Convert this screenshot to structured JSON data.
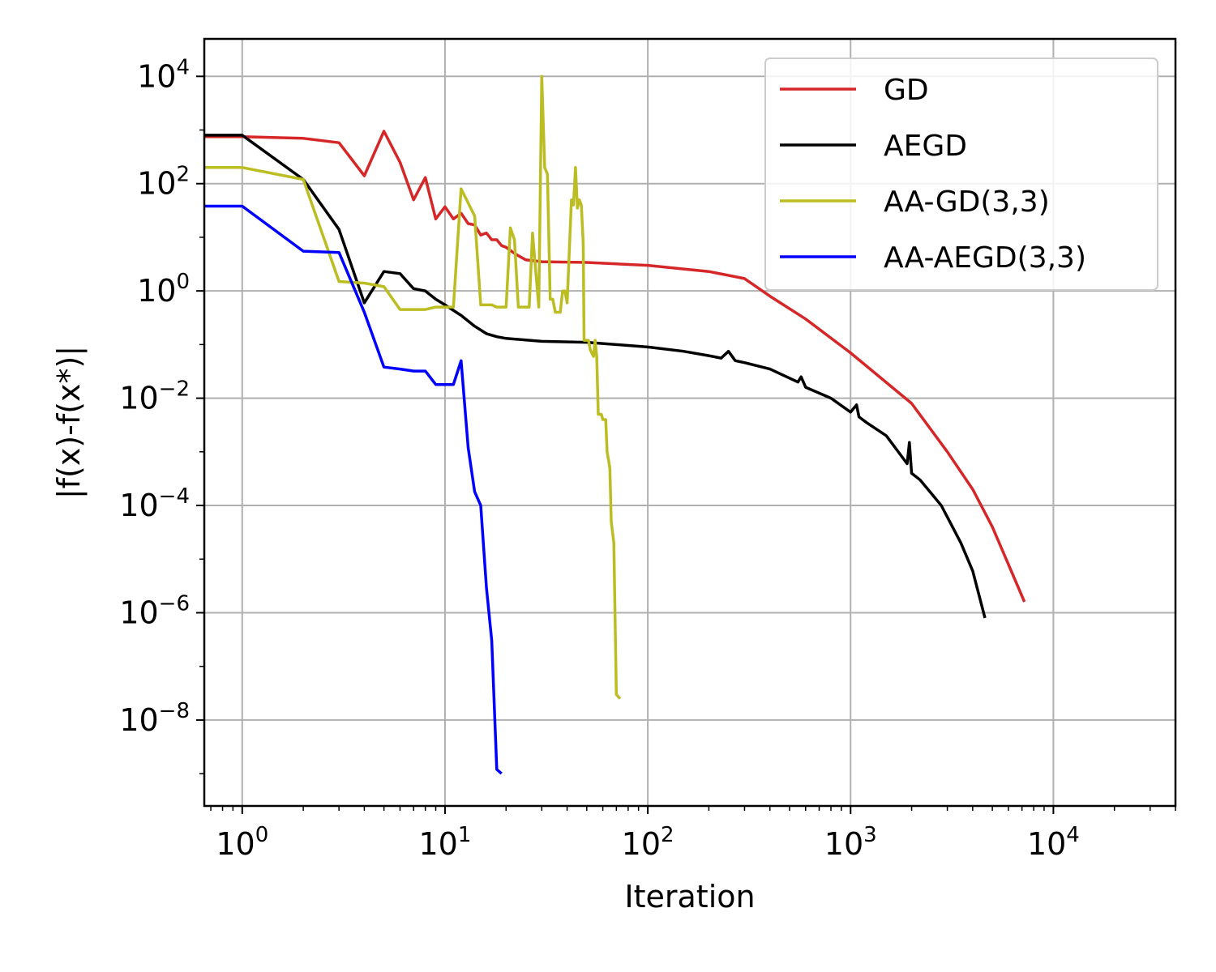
{
  "chart_data": {
    "type": "line",
    "title": "",
    "xlabel": "Iteration",
    "ylabel": "|f(x)-f(x*)|",
    "xscale": "log",
    "yscale": "log",
    "xlim": [
      0.65,
      40000
    ],
    "ylim": [
      2.5e-10,
      50000
    ],
    "xticks": [
      {
        "value": 1,
        "base": "10",
        "exp": "0"
      },
      {
        "value": 10,
        "base": "10",
        "exp": "1"
      },
      {
        "value": 100,
        "base": "10",
        "exp": "2"
      },
      {
        "value": 1000,
        "base": "10",
        "exp": "3"
      },
      {
        "value": 10000,
        "base": "10",
        "exp": "4"
      }
    ],
    "yticks": [
      {
        "value": 1e-08,
        "base": "10",
        "exp": "−8"
      },
      {
        "value": 1e-06,
        "base": "10",
        "exp": "−6"
      },
      {
        "value": 0.0001,
        "base": "10",
        "exp": "−4"
      },
      {
        "value": 0.01,
        "base": "10",
        "exp": "−2"
      },
      {
        "value": 1,
        "base": "10",
        "exp": "0"
      },
      {
        "value": 100,
        "base": "10",
        "exp": "2"
      },
      {
        "value": 10000,
        "base": "10",
        "exp": "4"
      }
    ],
    "grid": true,
    "legend_position": "top-right",
    "series": [
      {
        "name": "GD",
        "color": "#d62728",
        "points": [
          [
            0.65,
            750
          ],
          [
            1,
            750
          ],
          [
            2,
            700
          ],
          [
            3,
            580
          ],
          [
            4,
            140
          ],
          [
            5,
            950
          ],
          [
            6,
            250
          ],
          [
            7,
            50
          ],
          [
            8,
            130
          ],
          [
            9,
            22
          ],
          [
            10,
            37
          ],
          [
            11,
            22
          ],
          [
            12,
            28
          ],
          [
            13,
            18
          ],
          [
            14,
            17
          ],
          [
            15,
            11
          ],
          [
            16,
            12
          ],
          [
            17,
            9
          ],
          [
            18,
            9
          ],
          [
            19,
            7
          ],
          [
            20,
            6.5
          ],
          [
            22,
            5
          ],
          [
            25,
            3.8
          ],
          [
            30,
            3.5
          ],
          [
            50,
            3.4
          ],
          [
            100,
            3
          ],
          [
            200,
            2.3
          ],
          [
            300,
            1.7
          ],
          [
            400,
            0.8
          ],
          [
            600,
            0.3
          ],
          [
            1000,
            0.07
          ],
          [
            2000,
            0.008
          ],
          [
            3000,
            0.001
          ],
          [
            4000,
            0.0002
          ],
          [
            5000,
            4e-05
          ],
          [
            6000,
            8e-06
          ],
          [
            7200,
            1.6e-06
          ]
        ]
      },
      {
        "name": "AEGD",
        "color": "#000000",
        "points": [
          [
            0.65,
            800
          ],
          [
            1,
            800
          ],
          [
            2,
            120
          ],
          [
            3,
            14
          ],
          [
            4,
            0.6
          ],
          [
            5,
            2.3
          ],
          [
            6,
            2.1
          ],
          [
            7,
            1.1
          ],
          [
            8,
            1
          ],
          [
            9,
            0.7
          ],
          [
            10,
            0.55
          ],
          [
            12,
            0.35
          ],
          [
            14,
            0.22
          ],
          [
            16,
            0.16
          ],
          [
            18,
            0.14
          ],
          [
            20,
            0.13
          ],
          [
            30,
            0.115
          ],
          [
            50,
            0.11
          ],
          [
            100,
            0.09
          ],
          [
            150,
            0.075
          ],
          [
            200,
            0.062
          ],
          [
            230,
            0.056
          ],
          [
            250,
            0.075
          ],
          [
            270,
            0.05
          ],
          [
            300,
            0.046
          ],
          [
            400,
            0.035
          ],
          [
            550,
            0.02
          ],
          [
            570,
            0.025
          ],
          [
            600,
            0.016
          ],
          [
            800,
            0.01
          ],
          [
            1000,
            0.0055
          ],
          [
            1070,
            0.0075
          ],
          [
            1100,
            0.0045
          ],
          [
            1200,
            0.0035
          ],
          [
            1500,
            0.002
          ],
          [
            1900,
            0.0006
          ],
          [
            1950,
            0.0015
          ],
          [
            2000,
            0.0004
          ],
          [
            2200,
            0.0003
          ],
          [
            2800,
            0.0001
          ],
          [
            3500,
            2e-05
          ],
          [
            4000,
            6e-06
          ],
          [
            4600,
            8e-07
          ]
        ]
      },
      {
        "name": "AA-GD(3,3)",
        "color": "#bcbd22",
        "points": [
          [
            0.65,
            200
          ],
          [
            1,
            200
          ],
          [
            2,
            120
          ],
          [
            3,
            1.5
          ],
          [
            4,
            1.4
          ],
          [
            5,
            1.2
          ],
          [
            6,
            0.45
          ],
          [
            7,
            0.45
          ],
          [
            8,
            0.45
          ],
          [
            9,
            0.5
          ],
          [
            11,
            0.5
          ],
          [
            12,
            80
          ],
          [
            14,
            25
          ],
          [
            15,
            0.55
          ],
          [
            17,
            0.55
          ],
          [
            18,
            0.5
          ],
          [
            20,
            0.5
          ],
          [
            21,
            15
          ],
          [
            22,
            9
          ],
          [
            23,
            0.5
          ],
          [
            26,
            0.5
          ],
          [
            27,
            12
          ],
          [
            29,
            0.5
          ],
          [
            30,
            10000
          ],
          [
            31,
            200
          ],
          [
            32,
            150
          ],
          [
            33,
            0.7
          ],
          [
            34,
            0.7
          ],
          [
            35,
            0.4
          ],
          [
            37,
            0.4
          ],
          [
            38,
            1
          ],
          [
            39,
            1
          ],
          [
            40,
            0.6
          ],
          [
            42,
            50
          ],
          [
            43,
            40
          ],
          [
            44,
            200
          ],
          [
            45,
            35
          ],
          [
            46,
            50
          ],
          [
            47,
            40
          ],
          [
            48,
            8
          ],
          [
            48.5,
            0.12
          ],
          [
            51,
            0.12
          ],
          [
            52,
            0.08
          ],
          [
            54,
            0.06
          ],
          [
            55,
            0.12
          ],
          [
            56,
            0.06
          ],
          [
            57,
            0.005
          ],
          [
            59,
            0.005
          ],
          [
            60,
            0.004
          ],
          [
            62,
            0.004
          ],
          [
            63,
            0.001
          ],
          [
            65,
            0.0005
          ],
          [
            66,
            5e-05
          ],
          [
            68,
            2e-05
          ],
          [
            70,
            3e-08
          ],
          [
            73,
            2.5e-08
          ]
        ]
      },
      {
        "name": "AA-AEGD(3,3)",
        "color": "#0000ff",
        "points": [
          [
            0.65,
            38
          ],
          [
            1,
            38
          ],
          [
            2,
            5.5
          ],
          [
            3,
            5.2
          ],
          [
            4,
            0.4
          ],
          [
            5,
            0.038
          ],
          [
            6,
            0.035
          ],
          [
            7,
            0.032
          ],
          [
            8,
            0.032
          ],
          [
            9,
            0.018
          ],
          [
            10,
            0.018
          ],
          [
            11,
            0.018
          ],
          [
            12,
            0.05
          ],
          [
            13,
            0.0012
          ],
          [
            14,
            0.00018
          ],
          [
            15,
            0.0001
          ],
          [
            16,
            3e-06
          ],
          [
            17,
            3e-07
          ],
          [
            18,
            1.2e-09
          ],
          [
            19,
            1e-09
          ]
        ]
      }
    ]
  }
}
